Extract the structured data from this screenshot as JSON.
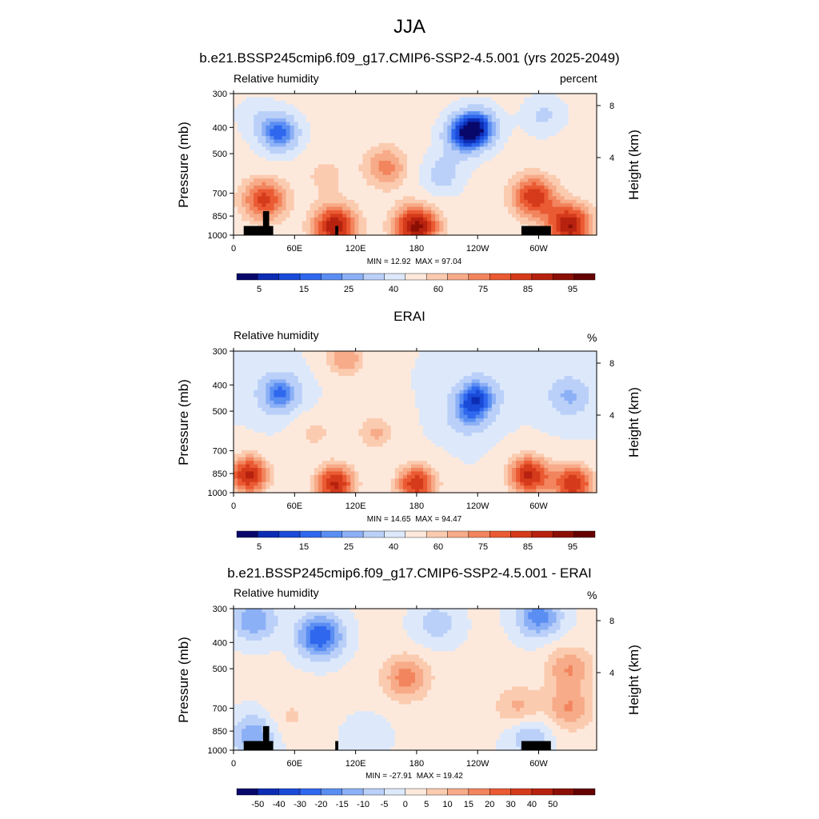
{
  "title": "JJA",
  "colors": {
    "rh_colorbar": [
      "#08086b",
      "#0c2cb4",
      "#1a4ad8",
      "#2f68ee",
      "#5b8ef2",
      "#8cb0f6",
      "#bad0f8",
      "#dde9fb",
      "#fde9dc",
      "#fbcbb0",
      "#f7ab88",
      "#f2855e",
      "#ea5a33",
      "#d53a1a",
      "#b6220f",
      "#8b0f05",
      "#650000"
    ],
    "diff_colorbar": [
      "#08086b",
      "#0c2cb4",
      "#1a4ad8",
      "#2f68ee",
      "#5b8ef2",
      "#8cb0f6",
      "#bad0f8",
      "#dde9fb",
      "#fde9dc",
      "#fbcbb0",
      "#f7ab88",
      "#f2855e",
      "#ea5a33",
      "#d53a1a",
      "#b6220f",
      "#8b0f05",
      "#650000"
    ],
    "terrain": "#000000"
  },
  "chart_data": [
    {
      "type": "heatmap",
      "title": "b.e21.BSSP245cmip6.f09_g17.CMIP6-SSP2-4.5.001 (yrs 2025-2049)",
      "variable": "Relative humidity",
      "units": "percent",
      "ylabel": "Pressure (mb)",
      "ylabel_right": "Height (km)",
      "x_ticks": [
        "0",
        "60E",
        "120E",
        "180",
        "120W",
        "60W"
      ],
      "x_tick_values": [
        0,
        60,
        120,
        180,
        240,
        300
      ],
      "xlim": [
        0,
        357
      ],
      "y_ticks": [
        "300",
        "400",
        "500",
        "700",
        "850",
        "1000"
      ],
      "y_tick_values": [
        300,
        400,
        500,
        700,
        850,
        1000
      ],
      "ylim": [
        1000,
        300
      ],
      "height_ticks": [
        "8",
        "4"
      ],
      "min_label": "MIN =  12.92",
      "max_label": "MAX =  97.04",
      "colorbar_labels": [
        "5",
        "15",
        "25",
        "40",
        "60",
        "75",
        "85",
        "95"
      ],
      "blobs": [
        {
          "lon": 45,
          "p": 420,
          "value": 18
        },
        {
          "lon": 240,
          "p": 400,
          "value": 16
        },
        {
          "lon": 225,
          "p": 430,
          "value": 25
        },
        {
          "lon": 305,
          "p": 360,
          "value": 38
        },
        {
          "lon": 20,
          "p": 360,
          "value": 45
        },
        {
          "lon": 150,
          "p": 560,
          "value": 72
        },
        {
          "lon": 90,
          "p": 600,
          "value": 62
        },
        {
          "lon": 205,
          "p": 600,
          "value": 35
        },
        {
          "lon": 30,
          "p": 740,
          "value": 82
        },
        {
          "lon": 295,
          "p": 720,
          "value": 84
        },
        {
          "lon": 180,
          "p": 930,
          "value": 92
        },
        {
          "lon": 100,
          "p": 930,
          "value": 90
        },
        {
          "lon": 330,
          "p": 920,
          "value": 90
        }
      ],
      "base_value": 55,
      "has_terrain": true
    },
    {
      "type": "heatmap",
      "title": "ERAI",
      "variable": "Relative humidity",
      "units": "%",
      "ylabel": "Pressure (mb)",
      "ylabel_right": "Height (km)",
      "x_ticks": [
        "0",
        "60E",
        "120E",
        "180",
        "120W",
        "60W"
      ],
      "x_tick_values": [
        0,
        60,
        120,
        180,
        240,
        300
      ],
      "xlim": [
        0,
        357
      ],
      "y_ticks": [
        "300",
        "400",
        "500",
        "700",
        "850",
        "1000"
      ],
      "y_tick_values": [
        300,
        400,
        500,
        700,
        850,
        1000
      ],
      "ylim": [
        1000,
        300
      ],
      "height_ticks": [
        "8",
        "4"
      ],
      "min_label": "MIN =  14.65",
      "max_label": "MAX =  94.47",
      "colorbar_labels": [
        "5",
        "15",
        "25",
        "40",
        "60",
        "75",
        "85",
        "95"
      ],
      "blobs": [
        {
          "lon": 45,
          "p": 430,
          "value": 18
        },
        {
          "lon": 240,
          "p": 440,
          "value": 18
        },
        {
          "lon": 330,
          "p": 440,
          "value": 28
        },
        {
          "lon": 230,
          "p": 520,
          "value": 30
        },
        {
          "lon": 110,
          "p": 320,
          "value": 70
        },
        {
          "lon": 140,
          "p": 600,
          "value": 66
        },
        {
          "lon": 80,
          "p": 600,
          "value": 62
        },
        {
          "lon": 15,
          "p": 860,
          "value": 86
        },
        {
          "lon": 290,
          "p": 860,
          "value": 86
        },
        {
          "lon": 180,
          "p": 930,
          "value": 84
        },
        {
          "lon": 100,
          "p": 930,
          "value": 86
        },
        {
          "lon": 335,
          "p": 930,
          "value": 84
        }
      ],
      "base_value": 50,
      "has_terrain": false
    },
    {
      "type": "heatmap",
      "title": "b.e21.BSSP245cmip6.f09_g17.CMIP6-SSP2-4.5.001 - ERAI",
      "variable": "Relative humidity",
      "units": "%",
      "ylabel": "Pressure (mb)",
      "ylabel_right": "Height (km)",
      "x_ticks": [
        "0",
        "60E",
        "120E",
        "180",
        "120W",
        "60W"
      ],
      "x_tick_values": [
        0,
        60,
        120,
        180,
        240,
        300
      ],
      "xlim": [
        0,
        357
      ],
      "y_ticks": [
        "300",
        "400",
        "500",
        "700",
        "850",
        "1000"
      ],
      "y_tick_values": [
        300,
        400,
        500,
        700,
        850,
        1000
      ],
      "ylim": [
        1000,
        300
      ],
      "height_ticks": [
        "8",
        "4"
      ],
      "min_label": "MIN = -27.91",
      "max_label": "MAX =  19.42",
      "colorbar_labels": [
        "-50",
        "-40",
        "-30",
        "-20",
        "-15",
        "-10",
        "-5",
        "0",
        "5",
        "10",
        "15",
        "20",
        "30",
        "40",
        "50"
      ],
      "blobs": [
        {
          "lon": 85,
          "p": 380,
          "value": -25
        },
        {
          "lon": 20,
          "p": 330,
          "value": -15
        },
        {
          "lon": 300,
          "p": 320,
          "value": -18
        },
        {
          "lon": 200,
          "p": 340,
          "value": -8
        },
        {
          "lon": 170,
          "p": 540,
          "value": 18
        },
        {
          "lon": 330,
          "p": 500,
          "value": 15
        },
        {
          "lon": 330,
          "p": 700,
          "value": 15
        },
        {
          "lon": 280,
          "p": 700,
          "value": 12
        },
        {
          "lon": 20,
          "p": 880,
          "value": -14
        },
        {
          "lon": 290,
          "p": 880,
          "value": -10
        },
        {
          "lon": 130,
          "p": 900,
          "value": -4
        },
        {
          "lon": 55,
          "p": 760,
          "value": 6
        }
      ],
      "base_value": 1,
      "has_terrain": true
    }
  ]
}
